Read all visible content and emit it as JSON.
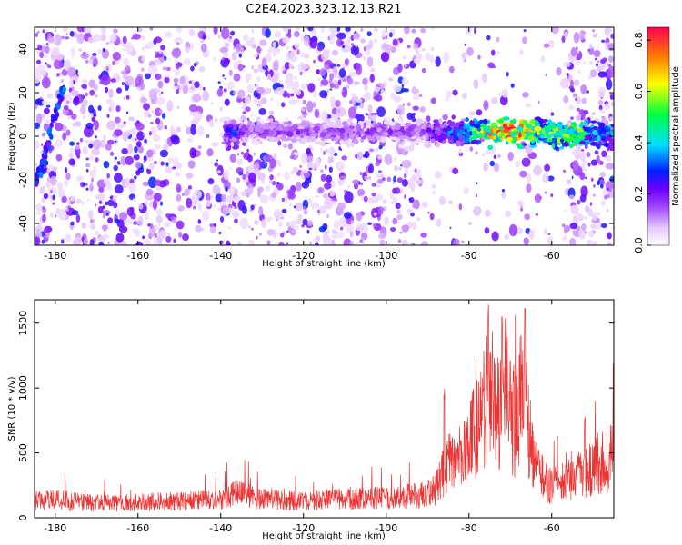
{
  "title": "C2E4.2023.323.12.13.R21",
  "colors": {
    "snr_line": "#ee3333",
    "colormap": [
      "#ffffff",
      "#e6c8ff",
      "#a040ff",
      "#6a00ff",
      "#0020ff",
      "#00e0ff",
      "#00ff40",
      "#ffff00",
      "#ff8000",
      "#ff0000"
    ]
  },
  "chart_data": [
    {
      "type": "heatmap",
      "xlabel": "Height of straight line (km)",
      "ylabel": "Frequency (Hz)",
      "xlim": [
        -185,
        -45
      ],
      "ylim": [
        -50,
        50
      ],
      "x_ticks": [
        -180,
        -160,
        -140,
        -120,
        -100,
        -80,
        -60
      ],
      "y_ticks": [
        -40,
        -20,
        0,
        20,
        40
      ],
      "colorbar": {
        "label": "Normalized spectral amplitude",
        "range": [
          0.0,
          0.85
        ],
        "ticks": [
          0.0,
          0.2,
          0.4,
          0.6,
          0.8
        ]
      },
      "features": [
        {
          "name": "diagonal streak",
          "x": [
            -184,
            -181,
            -178
          ],
          "y": [
            -20,
            5,
            22
          ],
          "intensity": 0.35
        },
        {
          "name": "zero-frequency band",
          "x_start": -138,
          "x_end": -45,
          "y": 2,
          "peak_intensity": 0.85,
          "peak_x": -71
        }
      ]
    },
    {
      "type": "line",
      "xlabel": "Height of straight line (km)",
      "ylabel": "SNR (10 * v/v)",
      "xlim": [
        -185,
        -45
      ],
      "ylim": [
        0,
        1680
      ],
      "x_ticks": [
        -180,
        -160,
        -140,
        -120,
        -100,
        -80,
        -60
      ],
      "y_ticks": [
        0,
        500,
        1000,
        1500
      ],
      "envelope": {
        "x": [
          -185,
          -180,
          -170,
          -160,
          -150,
          -140,
          -137,
          -130,
          -120,
          -110,
          -100,
          -92,
          -88,
          -86,
          -84,
          -80,
          -77,
          -75,
          -73,
          -71,
          -69,
          -67,
          -64,
          -60,
          -55,
          -50,
          -45
        ],
        "y_base": [
          150,
          160,
          130,
          140,
          150,
          160,
          220,
          170,
          150,
          170,
          180,
          200,
          260,
          450,
          500,
          650,
          950,
          1100,
          1000,
          1250,
          800,
          1150,
          450,
          280,
          350,
          450,
          550
        ],
        "peaks": [
          [
            -75.3,
            1680
          ],
          [
            -72,
            1550
          ],
          [
            -66.5,
            1680
          ],
          [
            -86,
            1000
          ],
          [
            -52,
            780
          ]
        ]
      }
    }
  ]
}
